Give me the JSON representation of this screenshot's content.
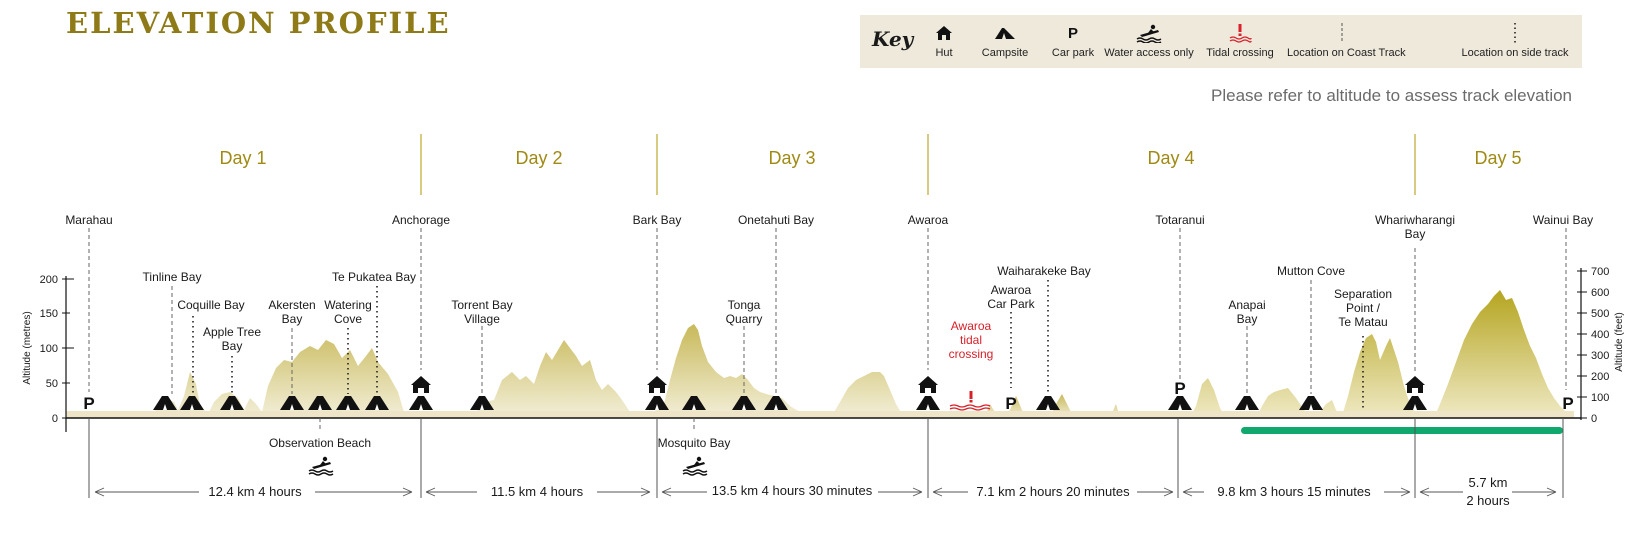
{
  "title": "ELEVATION PROFILE",
  "key": {
    "title": "Key",
    "items": [
      {
        "icon": "hut-icon",
        "label": "Hut"
      },
      {
        "icon": "campsite-icon",
        "label": "Campsite"
      },
      {
        "icon": "car-park-icon",
        "label": "Car park"
      },
      {
        "icon": "water-access-icon",
        "label": "Water access only"
      },
      {
        "icon": "tidal-crossing-icon",
        "label": "Tidal crossing"
      },
      {
        "icon": "coast-track-location-icon",
        "label": "Location on Coast Track"
      },
      {
        "icon": "side-track-location-icon",
        "label": "Location on side track"
      }
    ]
  },
  "note": "Please refer to altitude to assess track elevation",
  "axes": {
    "left_title": "Altitude (metres)",
    "left_ticks": [
      "200",
      "150",
      "100",
      "50",
      "0"
    ],
    "right_title": "Altitude (feet)",
    "right_ticks": [
      "700",
      "600",
      "500",
      "400",
      "300",
      "200",
      "100",
      "0"
    ]
  },
  "days": [
    "Day 1",
    "Day 2",
    "Day 3",
    "Day 4",
    "Day 5"
  ],
  "main_locations": [
    {
      "lines": [
        "Marahau"
      ]
    },
    {
      "lines": [
        "Anchorage"
      ]
    },
    {
      "lines": [
        "Bark Bay"
      ]
    },
    {
      "lines": [
        "Onetahuti Bay"
      ]
    },
    {
      "lines": [
        "Awaroa"
      ]
    },
    {
      "lines": [
        "Totaranui"
      ]
    },
    {
      "lines": [
        "Whariwharangi",
        "Bay"
      ]
    },
    {
      "lines": [
        "Wainui Bay"
      ]
    }
  ],
  "secondary_locations": [
    {
      "lines": [
        "Tinline Bay"
      ]
    },
    {
      "lines": [
        "Coquille Bay"
      ]
    },
    {
      "lines": [
        "Apple Tree",
        "Bay"
      ]
    },
    {
      "lines": [
        "Akersten",
        "Bay"
      ]
    },
    {
      "lines": [
        "Watering",
        "Cove"
      ]
    },
    {
      "lines": [
        "Te Pukatea Bay"
      ]
    },
    {
      "lines": [
        "Torrent Bay",
        "Village"
      ]
    },
    {
      "lines": [
        "Tonga",
        "Quarry"
      ]
    },
    {
      "lines": [
        "Waiharakeke Bay"
      ]
    },
    {
      "lines": [
        "Awaroa",
        "Car Park"
      ]
    },
    {
      "lines": [
        "Anapai",
        "Bay"
      ]
    },
    {
      "lines": [
        "Mutton Cove"
      ]
    },
    {
      "lines": [
        "Separation",
        "Point /",
        "Te  Matau"
      ]
    }
  ],
  "tidal_crossing": {
    "lines": [
      "Awaroa",
      "tidal",
      "crossing"
    ],
    "color": "#d8202a"
  },
  "below_locations": [
    {
      "label": "Observation Beach"
    },
    {
      "label": "Mosquito Bay"
    }
  ],
  "distances": [
    {
      "lines": [
        "12.4 km  4 hours"
      ]
    },
    {
      "lines": [
        "11.5 km  4 hours"
      ]
    },
    {
      "lines": [
        "13.5 km  4 hours 30 minutes"
      ]
    },
    {
      "lines": [
        "7.1 km  2 hours 20 minutes"
      ]
    },
    {
      "lines": [
        "9.8 km  3 hours 15 minutes"
      ]
    },
    {
      "lines": [
        "5.7 km",
        "2 hours"
      ]
    }
  ],
  "colors": {
    "brand": "#8e7a16",
    "day_label": "#a08a14",
    "terrain_metres": "#c8b95a",
    "terrain_feet": "#b5a520",
    "highlight_bar": "#10a86c",
    "key_background": "#efe9dc",
    "tidal": "#d8202a"
  }
}
